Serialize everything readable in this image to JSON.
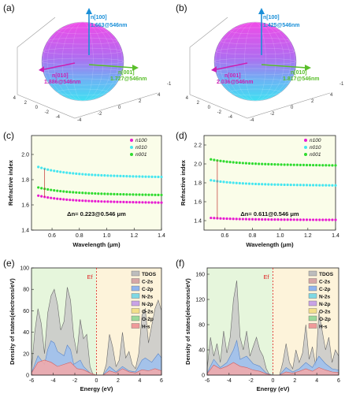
{
  "colors": {
    "magenta": "#e81bd2",
    "cyan": "#45e6f0",
    "green": "#2fdb2f",
    "bg_green": "#e6f6dc",
    "bg_yellow": "#fdf3da",
    "arrow_blue": "#1a8fd8",
    "arrow_magenta": "#cc1fb4",
    "arrow_green": "#5abf2b",
    "ef_red": "#e02020"
  },
  "chart_data": [
    {
      "panel": "(a)",
      "type": "3d-ellipsoid",
      "axes_ticks": [
        "4",
        "2",
        "0",
        "-2",
        "-4"
      ],
      "axes_ticks_right": [
        "-4",
        "-2",
        "0",
        "2",
        "4",
        "-1"
      ],
      "annotations": [
        {
          "label": "n[100]",
          "value": "1.663@546nm",
          "color": "arrow_blue"
        },
        {
          "label": "n[010]",
          "value": "1.886@546nm",
          "color": "arrow_magenta"
        },
        {
          "label": "n[001]",
          "value": "1.727@546nm",
          "color": "arrow_green"
        }
      ]
    },
    {
      "panel": "(b)",
      "type": "3d-ellipsoid",
      "axes_ticks": [
        "4",
        "2",
        "0",
        "-2",
        "-4"
      ],
      "axes_ticks_right": [
        "-4",
        "-2",
        "0",
        "2",
        "4",
        "-1"
      ],
      "annotations": [
        {
          "label": "n[100]",
          "value": "1.425@546nm",
          "color": "arrow_blue"
        },
        {
          "label": "n[001]",
          "value": "2.036@546nm",
          "color": "arrow_magenta"
        },
        {
          "label": "n[010]",
          "value": "1.817@546nm",
          "color": "arrow_green"
        }
      ]
    },
    {
      "panel": "(c)",
      "type": "scatter",
      "xlabel": "Wavelength (μm)",
      "ylabel": "Refractive index",
      "xlim": [
        0.45,
        1.4
      ],
      "ylim": [
        1.4,
        2.15
      ],
      "xticks": [
        0.6,
        0.8,
        1.0,
        1.2,
        1.4
      ],
      "xtick_labels": [
        "0.6",
        "0.8",
        "1.0",
        "1.2",
        "1.4"
      ],
      "yticks": [
        1.4,
        1.6,
        1.8,
        2.0
      ],
      "ytick_labels": [
        "1.4",
        "1.6",
        "1.8",
        "2.0"
      ],
      "legend_position": "top-right",
      "annotation": "Δn= 0.223@0.546 μm",
      "series": [
        {
          "name": "n100",
          "color": "magenta",
          "inf": 1.61,
          "value_at_0546": 1.663
        },
        {
          "name": "n010",
          "color": "cyan",
          "inf": 1.81,
          "value_at_0546": 1.886
        },
        {
          "name": "n001",
          "color": "green",
          "inf": 1.67,
          "value_at_0546": 1.727
        }
      ],
      "x_range": [
        0.5,
        1.4
      ],
      "points": 40
    },
    {
      "panel": "(d)",
      "type": "scatter",
      "xlabel": "Wavelength (μm)",
      "ylabel": "Refractive index",
      "xlim": [
        0.45,
        1.4
      ],
      "ylim": [
        1.3,
        2.3
      ],
      "xticks": [
        0.6,
        0.8,
        1.0,
        1.2,
        1.4
      ],
      "xtick_labels": [
        "0.6",
        "0.8",
        "1.0",
        "1.2",
        "1.4"
      ],
      "yticks": [
        1.4,
        1.6,
        1.8,
        2.0,
        2.2
      ],
      "ytick_labels": [
        "1.4",
        "1.6",
        "1.8",
        "2.0",
        "2.2"
      ],
      "legend_position": "top-right",
      "annotation": "Δn= 0.611@0.546 μm",
      "series": [
        {
          "name": "n100",
          "color": "magenta",
          "inf": 1.405,
          "value_at_0546": 1.425
        },
        {
          "name": "n010",
          "color": "cyan",
          "inf": 1.765,
          "value_at_0546": 1.817
        },
        {
          "name": "n001",
          "color": "green",
          "inf": 1.975,
          "value_at_0546": 2.036
        }
      ],
      "x_range": [
        0.5,
        1.4
      ],
      "points": 40
    },
    {
      "panel": "(e)",
      "type": "area",
      "xlabel": "Energy (eV)",
      "ylabel": "Density of states(electrons/eV)",
      "xlim": [
        -6,
        6
      ],
      "ylim": [
        0,
        100
      ],
      "xticks": [
        -6,
        -4,
        -2,
        0,
        2,
        4,
        6
      ],
      "xtick_labels": [
        "-6",
        "-4",
        "-2",
        "0",
        "2",
        "4",
        "6"
      ],
      "yticks": [
        0,
        20,
        40,
        60,
        80,
        100
      ],
      "ytick_labels": [
        "0",
        "20",
        "40",
        "60",
        "80",
        "100"
      ],
      "fermi_label": "Ef",
      "fermi_x": 0,
      "legend_position": "top-right",
      "legend": [
        "TDOS",
        "C-2s",
        "C-2p",
        "N-2s",
        "N-2p",
        "O-2s",
        "O-2p",
        "H-s"
      ],
      "legend_colors": [
        "#bdbdbd",
        "#d7a6a6",
        "#8fb4ee",
        "#7fd8e4",
        "#c9a3e6",
        "#f2df8a",
        "#9bd99b",
        "#f09a9a"
      ],
      "series": [
        {
          "name": "TDOS",
          "x": [
            -6,
            -5.7,
            -5.4,
            -5.1,
            -4.8,
            -4.5,
            -4.2,
            -3.9,
            -3.6,
            -3.3,
            -3.0,
            -2.7,
            -2.4,
            -2.1,
            -1.8,
            -1.5,
            -1.2,
            -0.9,
            -0.6,
            -0.3,
            0,
            0.3,
            0.6,
            0.9,
            1.2,
            1.5,
            1.8,
            2.1,
            2.4,
            2.7,
            3.0,
            3.3,
            3.6,
            3.9,
            4.2,
            4.5,
            4.8,
            5.1,
            5.4,
            5.7,
            6
          ],
          "y": [
            5,
            40,
            62,
            48,
            20,
            58,
            74,
            80,
            66,
            42,
            50,
            82,
            70,
            36,
            20,
            52,
            34,
            38,
            8,
            0,
            0,
            0,
            0,
            10,
            38,
            26,
            8,
            14,
            40,
            16,
            22,
            10,
            6,
            20,
            56,
            62,
            30,
            46,
            62,
            70,
            60
          ]
        },
        {
          "name": "C-2p",
          "x": [
            -6,
            -5.4,
            -4.8,
            -4.5,
            -4.2,
            -3.9,
            -3.6,
            -3.0,
            -2.7,
            -2.4,
            -2.1,
            -1.5,
            -1.2,
            -0.6,
            -0.3,
            0,
            0.6,
            1.2,
            1.8,
            2.4,
            3.0,
            3.6,
            4.2,
            4.5,
            5.1,
            5.7,
            6
          ],
          "y": [
            2,
            18,
            10,
            24,
            32,
            30,
            22,
            18,
            28,
            24,
            10,
            14,
            8,
            2,
            0,
            0,
            0,
            8,
            3,
            8,
            4,
            3,
            14,
            16,
            12,
            20,
            16
          ]
        },
        {
          "name": "H-s",
          "x": [
            -6,
            -5.4,
            -4.8,
            -4.2,
            -3.6,
            -3.0,
            -2.4,
            -1.8,
            -1.2,
            -0.6,
            0,
            0.6,
            1.2,
            1.8,
            2.4,
            3.0,
            3.6,
            4.2,
            4.8,
            5.4,
            6
          ],
          "y": [
            2,
            12,
            14,
            12,
            8,
            10,
            12,
            6,
            5,
            2,
            0,
            0,
            4,
            2,
            6,
            3,
            2,
            5,
            4,
            6,
            4
          ]
        }
      ]
    },
    {
      "panel": "(f)",
      "type": "area",
      "xlabel": "Energy (eV)",
      "ylabel": "Density of states(electrons/eV)",
      "xlim": [
        -6,
        6
      ],
      "ylim": [
        0,
        170
      ],
      "xticks": [
        -6,
        -4,
        -2,
        0,
        2,
        4,
        6
      ],
      "xtick_labels": [
        "-6",
        "-4",
        "-2",
        "0",
        "2",
        "4",
        "6"
      ],
      "yticks": [
        0,
        40,
        80,
        120,
        160
      ],
      "ytick_labels": [
        "0",
        "40",
        "80",
        "120",
        "160"
      ],
      "fermi_label": "Ef",
      "fermi_x": 0,
      "legend_position": "top-right",
      "legend": [
        "TDOS",
        "C-2s",
        "C-2p",
        "N-2s",
        "N-2p",
        "O-2s",
        "O-2p",
        "H-s"
      ],
      "legend_colors": [
        "#bdbdbd",
        "#d7a6a6",
        "#8fb4ee",
        "#7fd8e4",
        "#c9a3e6",
        "#f2df8a",
        "#9bd99b",
        "#f09a9a"
      ],
      "series": [
        {
          "name": "TDOS",
          "x": [
            -6,
            -5.7,
            -5.4,
            -5.1,
            -4.8,
            -4.5,
            -4.2,
            -3.9,
            -3.6,
            -3.3,
            -3.0,
            -2.7,
            -2.4,
            -2.1,
            -1.8,
            -1.5,
            -1.2,
            -0.9,
            -0.6,
            -0.3,
            0,
            0.3,
            0.6,
            0.9,
            1.2,
            1.5,
            1.8,
            2.1,
            2.4,
            2.7,
            3.0,
            3.3,
            3.6,
            3.9,
            4.2,
            4.5,
            4.8,
            5.1,
            5.4,
            5.7,
            6
          ],
          "y": [
            10,
            60,
            30,
            50,
            20,
            70,
            35,
            60,
            120,
            150,
            60,
            40,
            70,
            30,
            45,
            60,
            40,
            30,
            10,
            0,
            0,
            0,
            0,
            20,
            50,
            20,
            10,
            40,
            20,
            35,
            80,
            25,
            45,
            15,
            100,
            70,
            40,
            60,
            20,
            40,
            30
          ]
        },
        {
          "name": "C-2p",
          "x": [
            -6,
            -5.4,
            -4.8,
            -4.2,
            -3.6,
            -3.3,
            -3.0,
            -2.4,
            -1.8,
            -1.2,
            -0.6,
            0,
            0.6,
            1.2,
            1.8,
            2.4,
            3.0,
            3.6,
            4.2,
            4.8,
            5.4,
            6
          ],
          "y": [
            3,
            25,
            12,
            20,
            40,
            55,
            25,
            30,
            18,
            14,
            3,
            0,
            0,
            12,
            5,
            10,
            20,
            12,
            30,
            18,
            10,
            8
          ]
        },
        {
          "name": "H-s",
          "x": [
            -6,
            -5.4,
            -4.8,
            -4.2,
            -3.6,
            -3.0,
            -2.4,
            -1.8,
            -1.2,
            -0.6,
            0,
            0.6,
            1.2,
            1.8,
            2.4,
            3.0,
            3.6,
            4.2,
            4.8,
            5.4,
            6
          ],
          "y": [
            2,
            16,
            10,
            14,
            20,
            14,
            12,
            8,
            6,
            2,
            0,
            0,
            5,
            3,
            6,
            10,
            6,
            12,
            8,
            5,
            4
          ]
        }
      ]
    }
  ]
}
